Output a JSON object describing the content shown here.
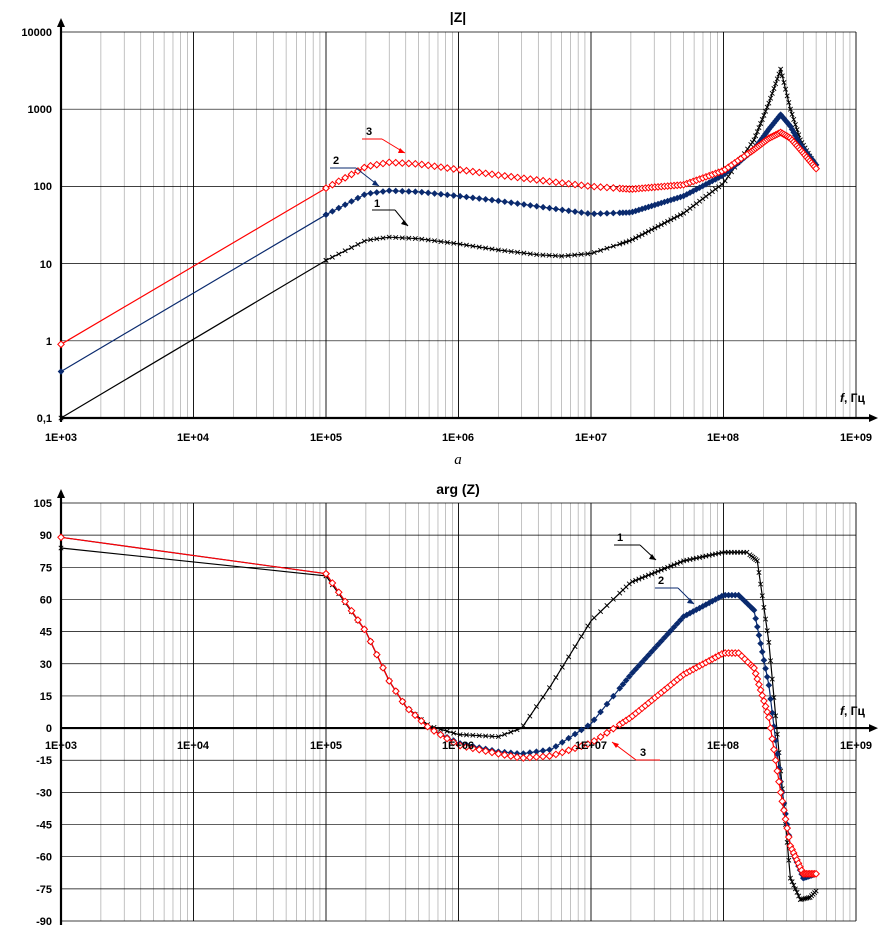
{
  "chart_data": [
    {
      "type": "line",
      "title": "|Z|",
      "subfigure_label": "а",
      "xscale": "log",
      "yscale": "log",
      "xlim": [
        1000,
        1000000000
      ],
      "ylim": [
        0.1,
        10000
      ],
      "x_tick_labels": [
        "1E+03",
        "1E+04",
        "1E+05",
        "1E+06",
        "1E+07",
        "1E+08",
        "1E+09"
      ],
      "y_tick_labels": [
        "0,1",
        "1",
        "10",
        "100",
        "1000",
        "10000"
      ],
      "xlabel_var": "f",
      "xlabel_unit": ", Гц",
      "grid": true,
      "series": [
        {
          "name": "1",
          "color": "#000000",
          "marker": "x",
          "points": [
            [
              1000,
              0.1
            ],
            [
              100000,
              11
            ],
            [
              200000,
              20
            ],
            [
              300000,
              22
            ],
            [
              500000,
              21
            ],
            [
              1000000,
              18
            ],
            [
              2000000,
              15
            ],
            [
              4000000,
              13
            ],
            [
              6000000,
              12.5
            ],
            [
              10000000,
              13.5
            ],
            [
              20000000,
              20
            ],
            [
              50000000,
              45
            ],
            [
              100000000,
              110
            ],
            [
              170000000,
              400
            ],
            [
              220000000,
              1200
            ],
            [
              270000000,
              3300
            ],
            [
              320000000,
              1000
            ],
            [
              380000000,
              400
            ],
            [
              500000000,
              180
            ]
          ]
        },
        {
          "name": "2",
          "color": "#0a2a6e",
          "marker": "diamond",
          "points": [
            [
              1000,
              0.4
            ],
            [
              100000,
              43
            ],
            [
              200000,
              80
            ],
            [
              300000,
              88
            ],
            [
              500000,
              85
            ],
            [
              1000000,
              75
            ],
            [
              2000000,
              65
            ],
            [
              5000000,
              52
            ],
            [
              10000000,
              44
            ],
            [
              20000000,
              46
            ],
            [
              50000000,
              75
            ],
            [
              100000000,
              140
            ],
            [
              170000000,
              300
            ],
            [
              220000000,
              550
            ],
            [
              270000000,
              850
            ],
            [
              320000000,
              600
            ],
            [
              380000000,
              350
            ],
            [
              500000000,
              190
            ]
          ]
        },
        {
          "name": "3",
          "color": "#ff0000",
          "marker": "diamond-open",
          "points": [
            [
              1000,
              0.9
            ],
            [
              100000,
              95
            ],
            [
              200000,
              180
            ],
            [
              300000,
              205
            ],
            [
              500000,
              195
            ],
            [
              1000000,
              165
            ],
            [
              2000000,
              140
            ],
            [
              5000000,
              115
            ],
            [
              10000000,
              100
            ],
            [
              20000000,
              92
            ],
            [
              50000000,
              105
            ],
            [
              100000000,
              160
            ],
            [
              170000000,
              300
            ],
            [
              220000000,
              420
            ],
            [
              270000000,
              500
            ],
            [
              320000000,
              420
            ],
            [
              380000000,
              300
            ],
            [
              500000000,
              170
            ]
          ]
        }
      ],
      "annotations": [
        "1",
        "2",
        "3"
      ]
    },
    {
      "type": "line",
      "title": "arg (Z)",
      "xscale": "log",
      "xlim": [
        1000,
        1000000000
      ],
      "ylim": [
        -90,
        105
      ],
      "x_tick_labels": [
        "1E+03",
        "1E+04",
        "1E+05",
        "1E+06",
        "1E+07",
        "1E+08",
        "1E+09"
      ],
      "y_tick_labels": [
        "105",
        "90",
        "75",
        "60",
        "45",
        "30",
        "15",
        "0",
        "-15",
        "-30",
        "-45",
        "-60",
        "-75",
        "-90"
      ],
      "xlabel_var": "f",
      "xlabel_unit": ", Гц",
      "grid": true,
      "series": [
        {
          "name": "1",
          "color": "#000000",
          "marker": "x",
          "points": [
            [
              1000,
              84
            ],
            [
              100000,
              71
            ],
            [
              200000,
              45
            ],
            [
              300000,
              22
            ],
            [
              400000,
              10
            ],
            [
              600000,
              1
            ],
            [
              1000000,
              -3
            ],
            [
              2000000,
              -4
            ],
            [
              3000000,
              0
            ],
            [
              5000000,
              20
            ],
            [
              10000000,
              50
            ],
            [
              20000000,
              68
            ],
            [
              50000000,
              78
            ],
            [
              100000000,
              82
            ],
            [
              150000000,
              82
            ],
            [
              180000000,
              78
            ],
            [
              220000000,
              40
            ],
            [
              270000000,
              -20
            ],
            [
              320000000,
              -70
            ],
            [
              380000000,
              -80
            ],
            [
              450000000,
              -79
            ],
            [
              500000000,
              -76
            ]
          ]
        },
        {
          "name": "2",
          "color": "#0a2a6e",
          "marker": "diamond",
          "points": [
            [
              1000,
              89
            ],
            [
              100000,
              72
            ],
            [
              200000,
              45
            ],
            [
              300000,
              22
            ],
            [
              400000,
              10
            ],
            [
              600000,
              0
            ],
            [
              1000000,
              -7
            ],
            [
              2000000,
              -11
            ],
            [
              3000000,
              -12
            ],
            [
              5000000,
              -10
            ],
            [
              10000000,
              2
            ],
            [
              20000000,
              25
            ],
            [
              50000000,
              52
            ],
            [
              100000000,
              62
            ],
            [
              130000000,
              62
            ],
            [
              170000000,
              55
            ],
            [
              220000000,
              20
            ],
            [
              270000000,
              -25
            ],
            [
              320000000,
              -55
            ],
            [
              400000000,
              -70
            ],
            [
              500000000,
              -68
            ]
          ]
        },
        {
          "name": "3",
          "color": "#ff0000",
          "marker": "diamond-open",
          "points": [
            [
              1000,
              89
            ],
            [
              100000,
              72
            ],
            [
              200000,
              45
            ],
            [
              300000,
              22
            ],
            [
              400000,
              10
            ],
            [
              600000,
              0
            ],
            [
              1000000,
              -8
            ],
            [
              2000000,
              -12
            ],
            [
              3000000,
              -14
            ],
            [
              5000000,
              -13
            ],
            [
              10000000,
              -7
            ],
            [
              20000000,
              5
            ],
            [
              50000000,
              25
            ],
            [
              100000000,
              35
            ],
            [
              130000000,
              35
            ],
            [
              170000000,
              28
            ],
            [
              220000000,
              5
            ],
            [
              270000000,
              -30
            ],
            [
              320000000,
              -55
            ],
            [
              400000000,
              -68
            ],
            [
              500000000,
              -68
            ]
          ]
        }
      ],
      "annotations": [
        "1",
        "2",
        "3"
      ]
    }
  ]
}
